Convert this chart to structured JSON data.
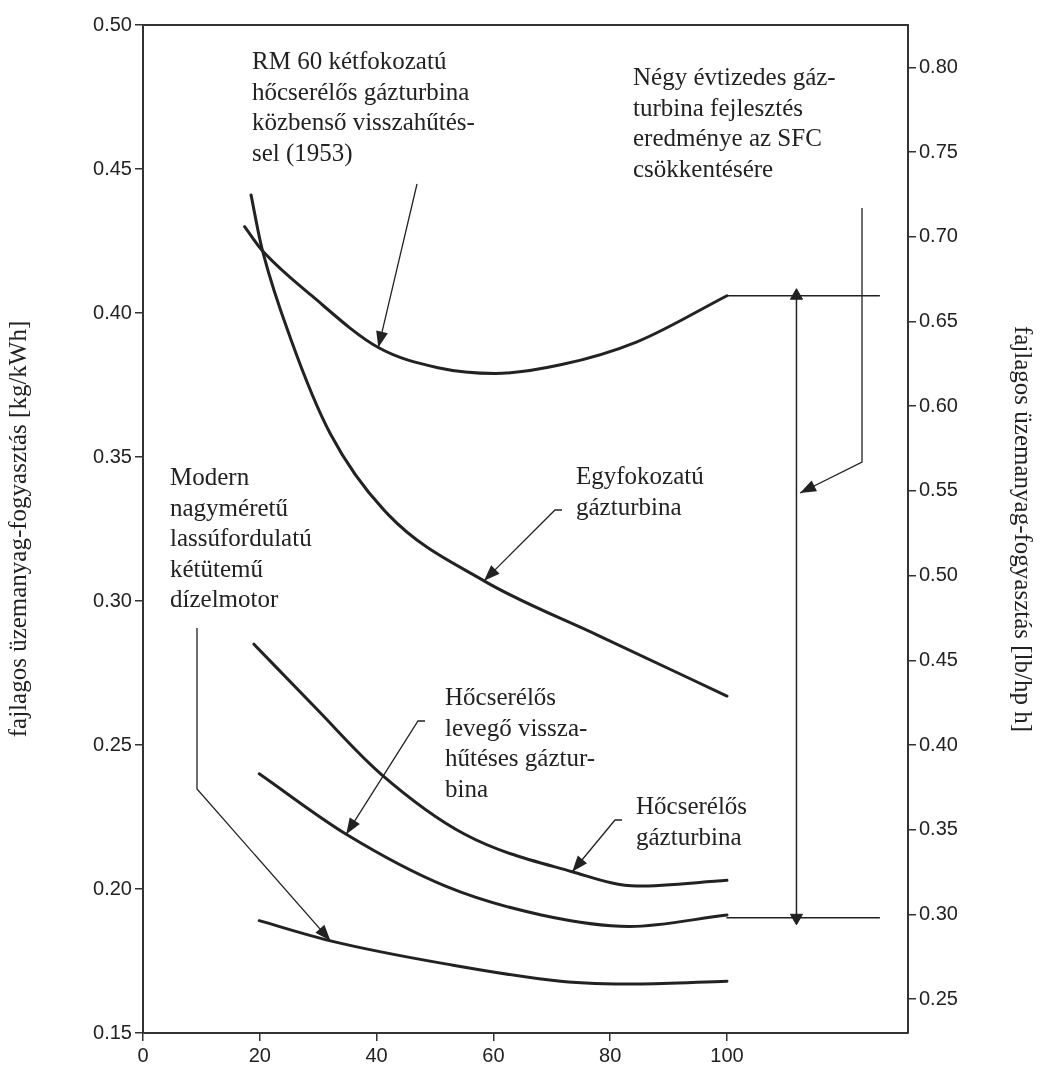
{
  "chart_data": {
    "type": "line",
    "ylabel": "fajlagos üzemanyag-fogyasztás [kg/kWh]",
    "y2label": "fajlagos üzemanyag-fogyasztás [lb/hp h]",
    "xlim": [
      0,
      131
    ],
    "xticks": [
      0,
      20,
      40,
      60,
      80,
      100
    ],
    "ylim": [
      0.15,
      0.5
    ],
    "yticks": [
      {
        "value": 0.15,
        "label": "0.15"
      },
      {
        "value": 0.2,
        "label": "0.20"
      },
      {
        "value": 0.25,
        "label": "0.25"
      },
      {
        "value": 0.3,
        "label": "0.30"
      },
      {
        "value": 0.35,
        "label": "0.35"
      },
      {
        "value": 0.4,
        "label": "0.40"
      },
      {
        "value": 0.45,
        "label": "0.45"
      },
      {
        "value": 0.5,
        "label": "0.50"
      }
    ],
    "y2lim": [
      0.23,
      0.825
    ],
    "y2ticks": [
      {
        "value": 0.25,
        "label": "0.25"
      },
      {
        "value": 0.3,
        "label": "0.30"
      },
      {
        "value": 0.35,
        "label": "0.35"
      },
      {
        "value": 0.4,
        "label": "0.40"
      },
      {
        "value": 0.45,
        "label": "0.45"
      },
      {
        "value": 0.5,
        "label": "0.50"
      },
      {
        "value": 0.55,
        "label": "0.55"
      },
      {
        "value": 0.6,
        "label": "0.60"
      },
      {
        "value": 0.65,
        "label": "0.65"
      },
      {
        "value": 0.7,
        "label": "0.70"
      },
      {
        "value": 0.75,
        "label": "0.75"
      },
      {
        "value": 0.8,
        "label": "0.80"
      }
    ],
    "grid": false,
    "legend": false,
    "marker": "none",
    "line_style": "solid",
    "series": [
      {
        "color": "#222222",
        "x": [
          17.4,
          20.3,
          28.9,
          40.3,
          50.5,
          60.3,
          71.5,
          84.6,
          100
        ],
        "values": [
          0.43,
          0.422,
          0.406,
          0.388,
          0.381,
          0.379,
          0.382,
          0.39,
          0.406
        ]
      },
      {
        "color": "#222222",
        "x": [
          18.5,
          20.3,
          25.3,
          32.1,
          42.0,
          58.4,
          78.0,
          100
        ],
        "values": [
          0.441,
          0.423,
          0.391,
          0.358,
          0.33,
          0.307,
          0.288,
          0.267
        ]
      },
      {
        "color": "#222222",
        "x": [
          19.0,
          29.5,
          40.7,
          55.1,
          73.5,
          84.6,
          100
        ],
        "values": [
          0.285,
          0.263,
          0.24,
          0.219,
          0.206,
          0.201,
          0.203
        ]
      },
      {
        "color": "#222222",
        "x": [
          19.9,
          34.8,
          51.8,
          68.2,
          83.3,
          100
        ],
        "values": [
          0.24,
          0.219,
          0.201,
          0.191,
          0.187,
          0.191
        ]
      },
      {
        "color": "#222222",
        "x": [
          19.9,
          32.1,
          51.8,
          71.5,
          84.6,
          100
        ],
        "values": [
          0.189,
          0.182,
          0.174,
          0.168,
          0.167,
          0.168
        ]
      },
      {
        "color": "#222222",
        "x": [
          100,
          126.1
        ],
        "values": [
          0.406,
          0.406
        ]
      },
      {
        "color": "#222222",
        "x": [
          100,
          126.1
        ],
        "values": [
          0.19,
          0.19
        ]
      },
      {
        "color": "#222222",
        "x": [
          111.9,
          111.9
        ],
        "values": [
          0.406,
          0.19
        ],
        "marker": "triangle"
      }
    ],
    "annotations": [
      {
        "text": "RM 60 kétfokozatú\nhőcserélős gázturbina\nközbenső visszahűtés-\nsel (1953)",
        "x": 40.3,
        "y": 0.388
      },
      "Négy évtizedes gáz-\nturbina fejlesztés\neredménye az SFC\ncsökkentésére",
      {
        "text": "Egyfokozatú\ngázturbina",
        "x": 58.4,
        "y": 0.307
      },
      {
        "text": "Modern\nnagyméretű\nlassúfordulatú\nkétütemű\ndízelmotor",
        "x": 32.1,
        "y": 0.182
      },
      {
        "text": "Hőcserélős\nlevegő vissza-\nhűtéses gáztur-\nbina",
        "x": 34.8,
        "y": 0.219
      },
      {
        "text": "Hőcserélős\ngázturbina",
        "x": 73.5,
        "y": 0.206
      }
    ]
  }
}
